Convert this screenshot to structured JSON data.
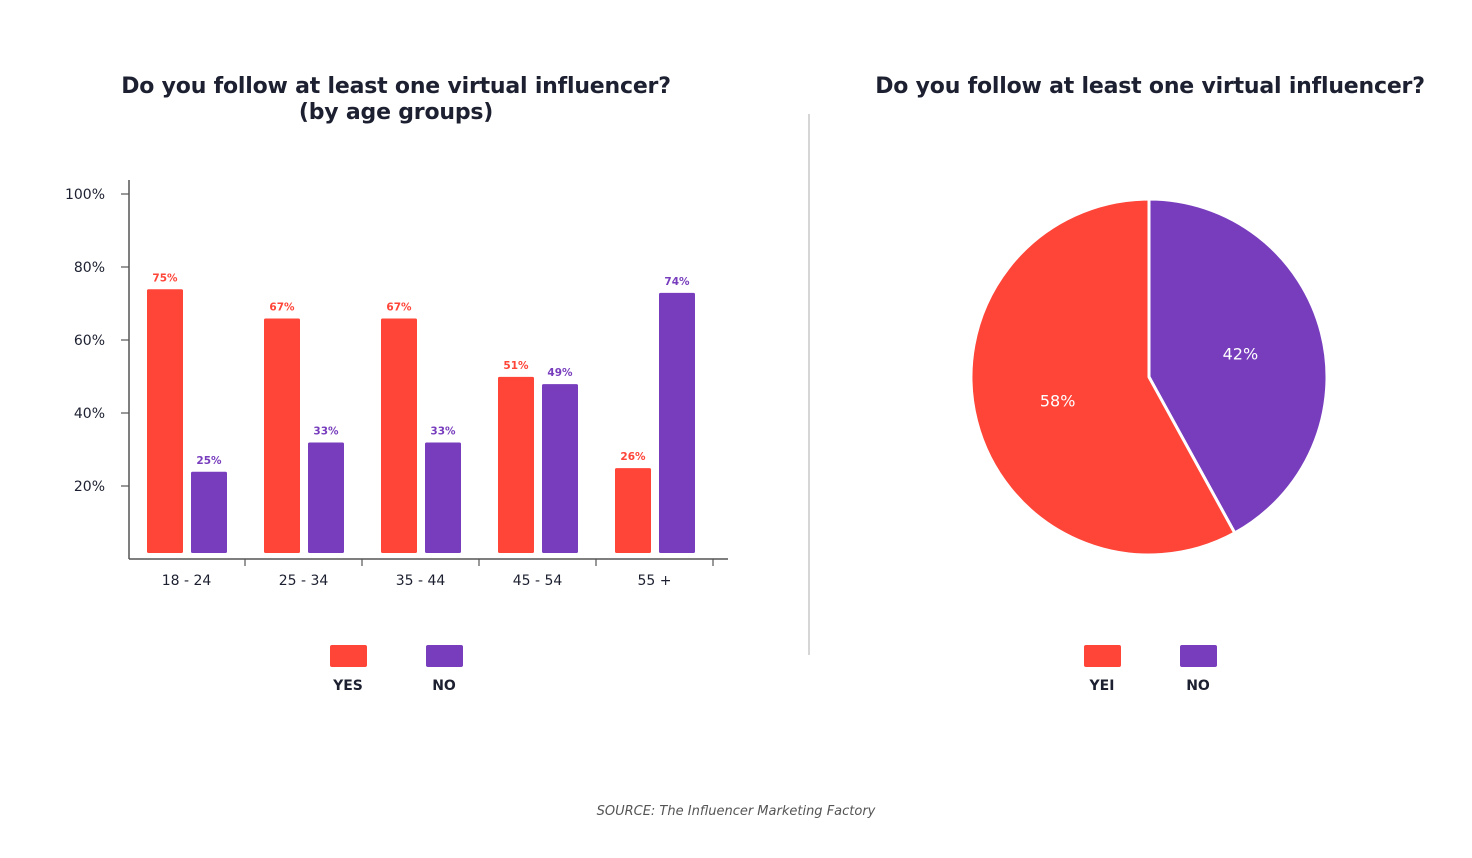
{
  "colors": {
    "yes": "#ff4438",
    "no": "#773dbd",
    "axis": "#555555",
    "text": "#1c2030"
  },
  "chart_data": [
    {
      "type": "bar",
      "title": "Do you follow at least one virtual influencer?",
      "subtitle": "(by age groups)",
      "xlabel": "",
      "ylabel": "",
      "categories": [
        "18 - 24",
        "25 - 34",
        "35 - 44",
        "45 - 54",
        "55 +"
      ],
      "series": [
        {
          "name": "YES",
          "color": "#ff4438",
          "values": [
            75,
            67,
            67,
            51,
            26
          ],
          "labels": [
            "75%",
            "67%",
            "67%",
            "51%",
            "26%"
          ]
        },
        {
          "name": "NO",
          "color": "#773dbd",
          "values": [
            25,
            33,
            33,
            49,
            74
          ],
          "labels": [
            "25%",
            "33%",
            "33%",
            "49%",
            "74%"
          ]
        }
      ],
      "yticks": [
        100,
        80,
        60,
        40,
        20
      ],
      "ytick_labels": [
        "100%",
        "80%",
        "60%",
        "40%",
        "20%"
      ],
      "ylim": [
        0,
        100
      ],
      "grid": false,
      "legend": {
        "placement": "bottom",
        "entries": [
          "YES",
          "NO"
        ]
      }
    },
    {
      "type": "pie",
      "title": "Do you follow at least one virtual influencer?",
      "slices": [
        {
          "label": "YEI",
          "value": 58,
          "text": "58%",
          "color": "#ff4438"
        },
        {
          "label": "NO",
          "value": 42,
          "text": "42%",
          "color": "#773dbd"
        }
      ],
      "legend": {
        "placement": "bottom",
        "entries": [
          "YEI",
          "NO"
        ]
      }
    }
  ],
  "source": "SOURCE: The Influencer Marketing Factory"
}
